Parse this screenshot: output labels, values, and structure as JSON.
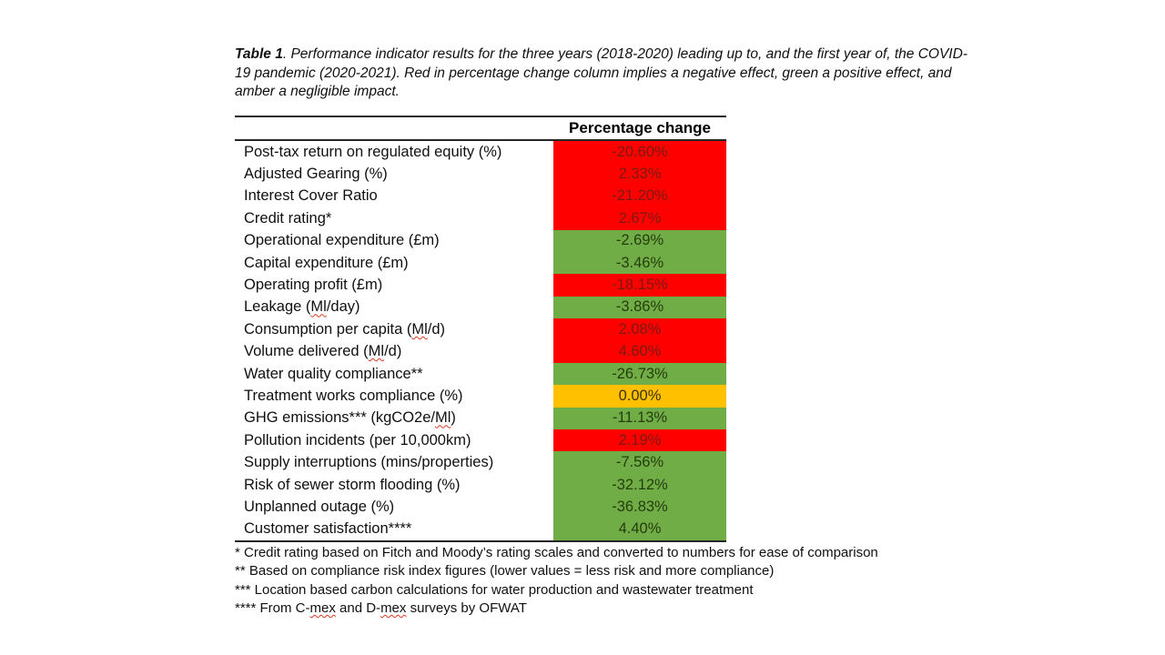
{
  "caption": {
    "prefix": "Table 1",
    "text": ". Performance indicator results for the three years (2018-2020) leading up to, and the first year of, the COVID-19 pandemic (2020-2021). Red in percentage change column implies a negative effect, green a positive effect, and amber a negligible impact."
  },
  "table": {
    "header": {
      "value_column": "Percentage change"
    },
    "status_colors": {
      "red": "#FE0000",
      "green": "#70AD47",
      "amber": "#FFC000"
    },
    "text_colors": {
      "red": "#7C1810",
      "green": "#253D0C",
      "amber": "#3E3000"
    },
    "rows": [
      {
        "label": "Post-tax return on regulated equity (%)",
        "value": "-20.60%",
        "status": "red",
        "misspelled": []
      },
      {
        "label": "Adjusted Gearing (%)",
        "value": "2.33%",
        "status": "red",
        "misspelled": []
      },
      {
        "label": "Interest Cover Ratio",
        "value": "-21.20%",
        "status": "red",
        "misspelled": []
      },
      {
        "label": "Credit rating*",
        "value": "2.67%",
        "status": "red",
        "misspelled": []
      },
      {
        "label": "Operational expenditure (£m)",
        "value": "-2.69%",
        "status": "green",
        "misspelled": []
      },
      {
        "label": "Capital expenditure (£m)",
        "value": "-3.46%",
        "status": "green",
        "misspelled": []
      },
      {
        "label": "Operating profit (£m)",
        "value": "-18.15%",
        "status": "red",
        "misspelled": []
      },
      {
        "label": "Leakage (Ml/day)",
        "value": "-3.86%",
        "status": "green",
        "misspelled": [
          "Ml"
        ]
      },
      {
        "label": "Consumption per capita (Ml/d)",
        "value": "2.08%",
        "status": "red",
        "misspelled": [
          "Ml"
        ]
      },
      {
        "label": "Volume delivered (Ml/d)",
        "value": "4.60%",
        "status": "red",
        "misspelled": [
          "Ml"
        ]
      },
      {
        "label": "Water quality compliance**",
        "value": "-26.73%",
        "status": "green",
        "misspelled": []
      },
      {
        "label": "Treatment works compliance (%)",
        "value": "0.00%",
        "status": "amber",
        "misspelled": []
      },
      {
        "label": "GHG emissions*** (kgCO2e/Ml)",
        "value": "-11.13%",
        "status": "green",
        "misspelled": [
          "Ml"
        ]
      },
      {
        "label": "Pollution incidents (per 10,000km)",
        "value": "2.19%",
        "status": "red",
        "misspelled": []
      },
      {
        "label": "Supply interruptions (mins/properties)",
        "value": "-7.56%",
        "status": "green",
        "misspelled": []
      },
      {
        "label": "Risk of sewer storm flooding (%)",
        "value": "-32.12%",
        "status": "green",
        "misspelled": []
      },
      {
        "label": "Unplanned outage (%)",
        "value": "-36.83%",
        "status": "green",
        "misspelled": []
      },
      {
        "label": "Customer satisfaction****",
        "value": "4.40%",
        "status": "green",
        "misspelled": []
      }
    ]
  },
  "footnotes": [
    {
      "text": "* Credit rating based on Fitch and Moody’s rating scales and converted to numbers for ease of comparison",
      "misspelled": []
    },
    {
      "text": "** Based on compliance risk index figures (lower values = less risk and more compliance)",
      "misspelled": []
    },
    {
      "text": "*** Location based carbon calculations for water production and wastewater treatment",
      "misspelled": []
    },
    {
      "text": "**** From C-mex and D-mex surveys by OFWAT",
      "misspelled": [
        "mex"
      ]
    }
  ]
}
